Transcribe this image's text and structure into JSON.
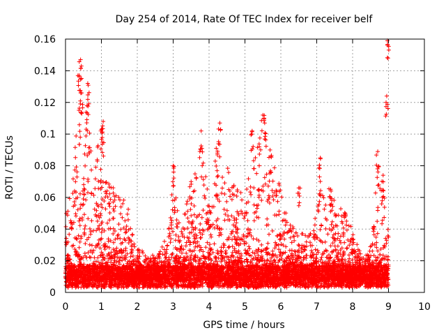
{
  "chart_data": {
    "type": "scatter",
    "title": "Day 254 of 2014, Rate Of TEC Index for receiver belf",
    "xlabel": "GPS time / hours",
    "ylabel": "ROTI / TECUs",
    "xlim": [
      0,
      10
    ],
    "ylim": [
      0,
      0.16
    ],
    "x_ticks": [
      0,
      1,
      2,
      3,
      4,
      5,
      6,
      7,
      8,
      9,
      10
    ],
    "x_tick_labels": [
      "0",
      "1",
      "2",
      "3",
      "4",
      "5",
      "6",
      "7",
      "8",
      "9",
      "10"
    ],
    "y_ticks": [
      0,
      0.02,
      0.04,
      0.06,
      0.08,
      0.1,
      0.12,
      0.14,
      0.16
    ],
    "y_tick_labels": [
      "0",
      "0.02",
      "0.04",
      "0.06",
      "0.08",
      "0.1",
      "0.12",
      "0.14",
      "0.16"
    ],
    "grid": true,
    "marker": "+",
    "marker_color": "#ff0000",
    "data_range_x": [
      0,
      9
    ],
    "series": [
      {
        "name": "ROTI",
        "notable_points": [
          [
            0.42,
            0.147
          ],
          [
            0.38,
            0.137
          ],
          [
            0.62,
            0.132
          ],
          [
            0.45,
            0.126
          ],
          [
            0.6,
            0.118
          ],
          [
            1.05,
            0.108
          ],
          [
            1.0,
            0.103
          ],
          [
            3.78,
            0.102
          ],
          [
            4.3,
            0.107
          ],
          [
            4.2,
            0.091
          ],
          [
            5.2,
            0.102
          ],
          [
            5.5,
            0.112
          ],
          [
            5.55,
            0.107
          ],
          [
            5.7,
            0.09
          ],
          [
            6.5,
            0.066
          ],
          [
            7.1,
            0.085
          ],
          [
            7.4,
            0.064
          ],
          [
            8.7,
            0.089
          ],
          [
            8.85,
            0.074
          ],
          [
            8.97,
            0.159
          ],
          [
            8.95,
            0.124
          ],
          [
            3.0,
            0.08
          ],
          [
            3.5,
            0.07
          ]
        ],
        "envelope": [
          [
            0.0,
            0.05
          ],
          [
            0.2,
            0.08
          ],
          [
            0.4,
            0.12
          ],
          [
            0.6,
            0.11
          ],
          [
            0.8,
            0.085
          ],
          [
            1.0,
            0.1
          ],
          [
            1.2,
            0.075
          ],
          [
            1.4,
            0.062
          ],
          [
            1.6,
            0.062
          ],
          [
            1.8,
            0.05
          ],
          [
            2.0,
            0.03
          ],
          [
            2.3,
            0.022
          ],
          [
            2.6,
            0.025
          ],
          [
            2.9,
            0.045
          ],
          [
            3.0,
            0.075
          ],
          [
            3.2,
            0.04
          ],
          [
            3.5,
            0.07
          ],
          [
            3.8,
            0.095
          ],
          [
            4.0,
            0.055
          ],
          [
            4.3,
            0.09
          ],
          [
            4.6,
            0.075
          ],
          [
            5.0,
            0.06
          ],
          [
            5.2,
            0.095
          ],
          [
            5.5,
            0.1
          ],
          [
            5.7,
            0.09
          ],
          [
            6.0,
            0.065
          ],
          [
            6.3,
            0.045
          ],
          [
            6.6,
            0.04
          ],
          [
            6.9,
            0.04
          ],
          [
            7.1,
            0.07
          ],
          [
            7.4,
            0.065
          ],
          [
            7.7,
            0.055
          ],
          [
            8.0,
            0.04
          ],
          [
            8.3,
            0.02
          ],
          [
            8.5,
            0.03
          ],
          [
            8.7,
            0.085
          ],
          [
            8.85,
            0.065
          ],
          [
            9.0,
            0.045
          ]
        ]
      }
    ]
  }
}
